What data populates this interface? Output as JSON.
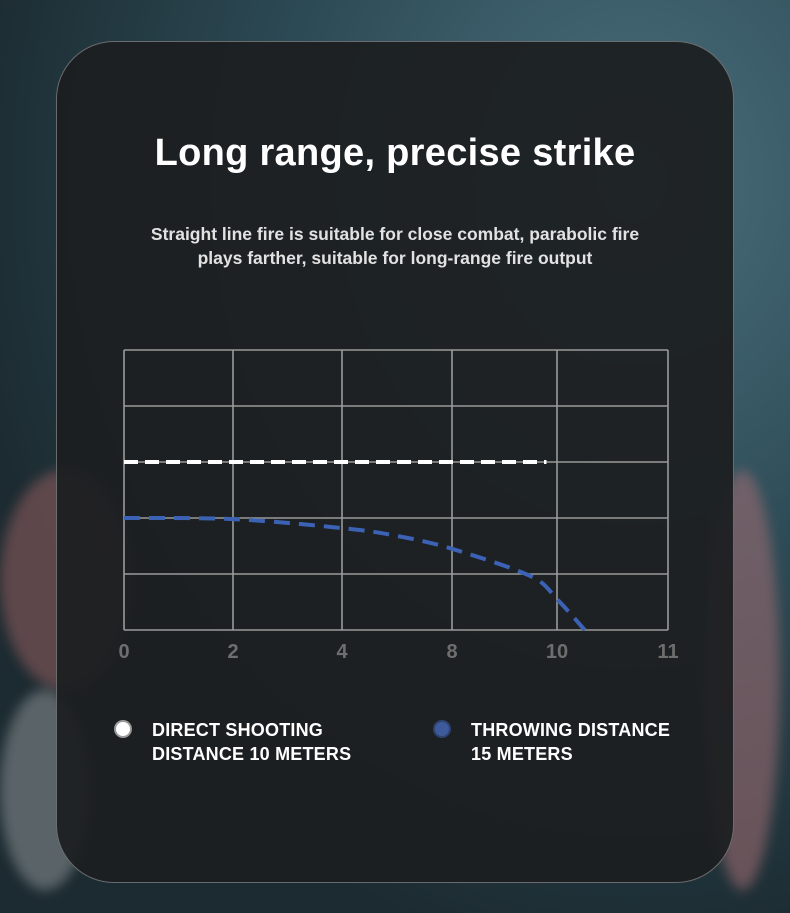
{
  "header": {
    "title": "Long range, precise strike",
    "subtitle_line1": "Straight line fire is suitable for close combat, parabolic fire",
    "subtitle_line2": "plays farther, suitable for long-range fire output"
  },
  "chart_data": {
    "type": "line",
    "x_tick_labels": [
      "0",
      "2",
      "4",
      "8",
      "10",
      "11"
    ],
    "y_gridlines": 5,
    "ylim": [
      0,
      5
    ],
    "grid": true,
    "series": [
      {
        "name": "DIRECT SHOOTING DISTANCE 10 METERS",
        "style": "dashed",
        "color": "#ffffff",
        "x": [
          0,
          9.8
        ],
        "y": [
          3,
          3
        ]
      },
      {
        "name": "THROWING DISTANCE 15 METERS",
        "style": "dashed",
        "color": "#3b62b4",
        "x": [
          0,
          2,
          4,
          6,
          8,
          9.5,
          10,
          10.25
        ],
        "y": [
          2,
          1.98,
          1.82,
          1.68,
          1.45,
          0.96,
          0.55,
          0
        ]
      }
    ],
    "legend_position": "bottom"
  },
  "legend": [
    {
      "line1": "DIRECT SHOOTING",
      "line2": "DISTANCE 10 METERS",
      "color": "#ffffff"
    },
    {
      "line1": "THROWING DISTANCE",
      "line2": "15 METERS",
      "color": "#3d5a9a"
    }
  ]
}
